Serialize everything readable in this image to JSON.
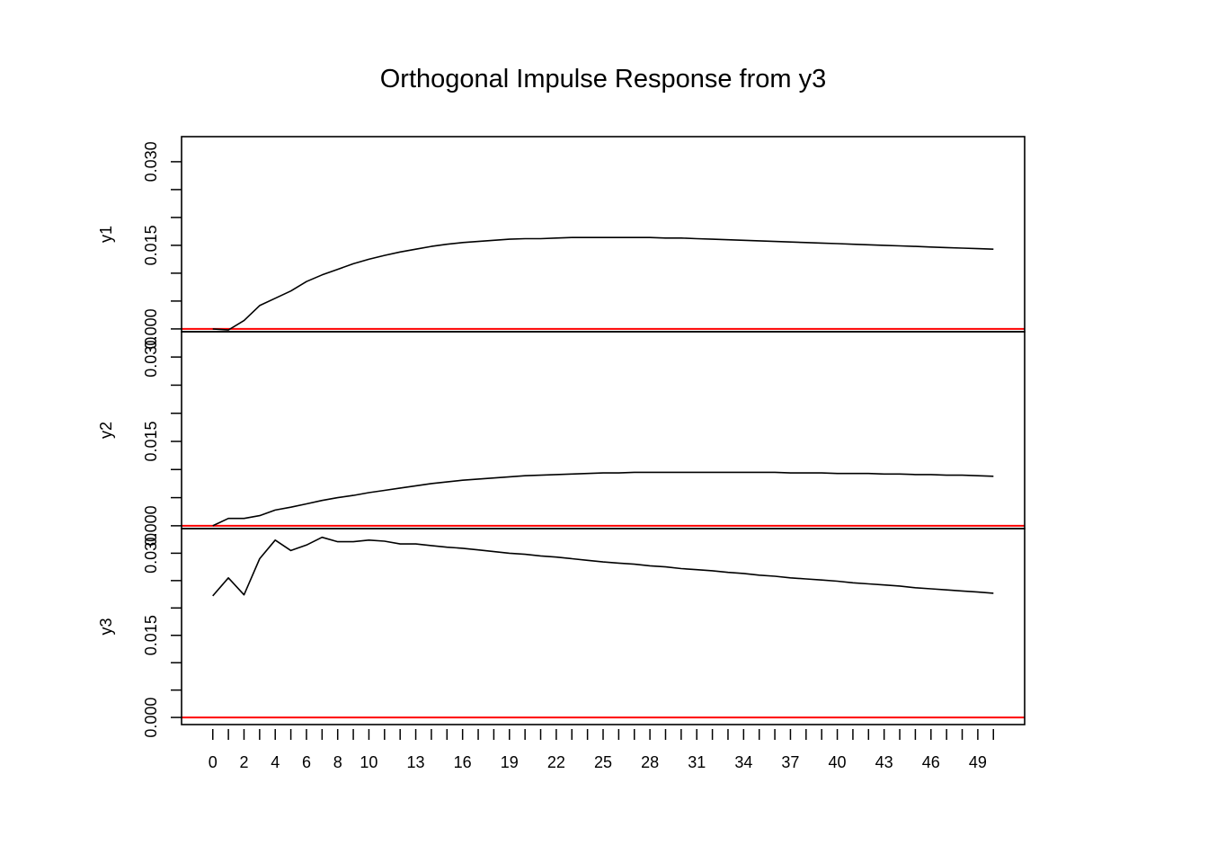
{
  "chart_data": {
    "type": "line",
    "title": "Orthogonal Impulse Response from y3",
    "x": [
      0,
      1,
      2,
      3,
      4,
      5,
      6,
      7,
      8,
      9,
      10,
      11,
      12,
      13,
      14,
      15,
      16,
      17,
      18,
      19,
      20,
      21,
      22,
      23,
      24,
      25,
      26,
      27,
      28,
      29,
      30,
      31,
      32,
      33,
      34,
      35,
      36,
      37,
      38,
      39,
      40,
      41,
      42,
      43,
      44,
      45,
      46,
      47,
      48,
      49,
      50
    ],
    "x_tick_labels": [
      "0",
      "2",
      "4",
      "6",
      "8",
      "10",
      "13",
      "16",
      "19",
      "22",
      "25",
      "28",
      "31",
      "34",
      "37",
      "40",
      "43",
      "46",
      "49"
    ],
    "xlim": [
      -2,
      52
    ],
    "zero_line_color": "#ff0000",
    "line_color": "#000000",
    "panels": [
      {
        "ylabel": "y1",
        "ylim": [
          -0.0005,
          0.0345
        ],
        "y_ticks": [
          0.0,
          0.005,
          0.01,
          0.015,
          0.02,
          0.025,
          0.03
        ],
        "y_tick_labels": [
          "0.000",
          "0.015",
          "0.030"
        ],
        "values": [
          0.0,
          -0.0002,
          0.0015,
          0.0042,
          0.0055,
          0.0068,
          0.0085,
          0.0097,
          0.0107,
          0.0117,
          0.0125,
          0.0132,
          0.0138,
          0.0143,
          0.0148,
          0.0152,
          0.0155,
          0.0157,
          0.0159,
          0.0161,
          0.0162,
          0.0162,
          0.0163,
          0.0164,
          0.0164,
          0.0164,
          0.0164,
          0.0164,
          0.0164,
          0.0163,
          0.0163,
          0.0162,
          0.0161,
          0.016,
          0.0159,
          0.0158,
          0.0157,
          0.0156,
          0.0155,
          0.0154,
          0.0153,
          0.0152,
          0.0151,
          0.015,
          0.0149,
          0.0148,
          0.0147,
          0.0146,
          0.0145,
          0.0144,
          0.0143
        ]
      },
      {
        "ylabel": "y2",
        "ylim": [
          -0.0005,
          0.0345
        ],
        "y_ticks": [
          0.0,
          0.005,
          0.01,
          0.015,
          0.02,
          0.025,
          0.03
        ],
        "y_tick_labels": [
          "0.000",
          "0.015",
          "0.030"
        ],
        "values": [
          0.0,
          0.0013,
          0.0013,
          0.0018,
          0.0028,
          0.0033,
          0.0039,
          0.0045,
          0.005,
          0.0054,
          0.0059,
          0.0063,
          0.0067,
          0.0071,
          0.0075,
          0.0078,
          0.0081,
          0.0083,
          0.0085,
          0.0087,
          0.0089,
          0.009,
          0.0091,
          0.0092,
          0.0093,
          0.0094,
          0.0094,
          0.0095,
          0.0095,
          0.0095,
          0.0095,
          0.0095,
          0.0095,
          0.0095,
          0.0095,
          0.0095,
          0.0095,
          0.0094,
          0.0094,
          0.0094,
          0.0093,
          0.0093,
          0.0093,
          0.0092,
          0.0092,
          0.0091,
          0.0091,
          0.009,
          0.009,
          0.0089,
          0.0088
        ]
      },
      {
        "ylabel": "y3",
        "ylim": [
          -0.0013,
          0.0345
        ],
        "y_ticks": [
          0.0,
          0.005,
          0.01,
          0.015,
          0.02,
          0.025,
          0.03
        ],
        "y_tick_labels": [
          "0.000",
          "0.015",
          "0.030"
        ],
        "values": [
          0.0222,
          0.0255,
          0.0224,
          0.029,
          0.0324,
          0.0305,
          0.0315,
          0.0329,
          0.0321,
          0.0321,
          0.0324,
          0.0322,
          0.0317,
          0.0317,
          0.0314,
          0.0311,
          0.0309,
          0.0306,
          0.0303,
          0.03,
          0.0298,
          0.0295,
          0.0293,
          0.029,
          0.0287,
          0.0284,
          0.0282,
          0.028,
          0.0277,
          0.0275,
          0.0272,
          0.027,
          0.0268,
          0.0265,
          0.0263,
          0.026,
          0.0258,
          0.0255,
          0.0253,
          0.0251,
          0.0249,
          0.0246,
          0.0244,
          0.0242,
          0.024,
          0.0237,
          0.0235,
          0.0233,
          0.0231,
          0.0229,
          0.0227
        ]
      }
    ]
  }
}
